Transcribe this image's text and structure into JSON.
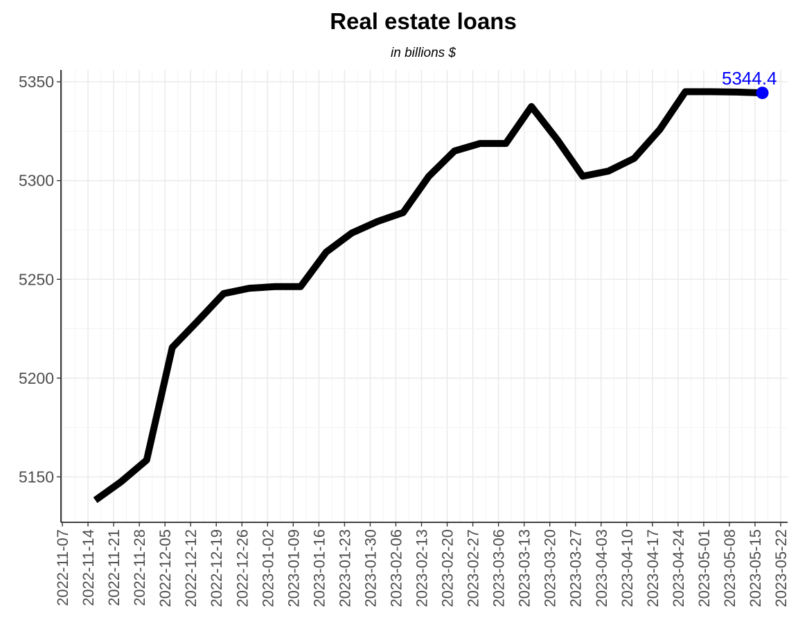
{
  "chart_data": {
    "type": "line",
    "title": "Real estate loans",
    "subtitle": "in billions $",
    "xlabel": "",
    "ylabel": "",
    "ylim": [
      5127,
      5356
    ],
    "xlim": [
      "2022-11-07",
      "2023-05-22"
    ],
    "y_ticks": [
      5150,
      5200,
      5250,
      5300,
      5350
    ],
    "x_ticks": [
      "2022-11-07",
      "2022-11-14",
      "2022-11-21",
      "2022-11-28",
      "2022-12-05",
      "2022-12-12",
      "2022-12-19",
      "2022-12-26",
      "2023-01-02",
      "2023-01-09",
      "2023-01-16",
      "2023-01-23",
      "2023-01-30",
      "2023-02-06",
      "2023-02-13",
      "2023-02-20",
      "2023-02-27",
      "2023-03-06",
      "2023-03-13",
      "2023-03-20",
      "2023-03-27",
      "2023-04-03",
      "2023-04-10",
      "2023-04-17",
      "2023-04-24",
      "2023-05-01",
      "2023-05-08",
      "2023-05-15",
      "2023-05-22"
    ],
    "grid": true,
    "series": [
      {
        "color": "#000000",
        "x": [
          "2022-11-16",
          "2022-11-23",
          "2022-11-30",
          "2022-12-07",
          "2022-12-14",
          "2022-12-21",
          "2022-12-28",
          "2023-01-04",
          "2023-01-11",
          "2023-01-18",
          "2023-01-25",
          "2023-02-01",
          "2023-02-08",
          "2023-02-15",
          "2023-02-22",
          "2023-03-01",
          "2023-03-08",
          "2023-03-15",
          "2023-03-22",
          "2023-03-29",
          "2023-04-05",
          "2023-04-12",
          "2023-04-19",
          "2023-04-26",
          "2023-05-03",
          "2023-05-10",
          "2023-05-17"
        ],
        "values": [
          5138.2,
          5147.5,
          5158.5,
          5215.5,
          5229.0,
          5242.8,
          5245.5,
          5246.3,
          5246.3,
          5263.8,
          5273.5,
          5279.3,
          5283.8,
          5302.2,
          5315.0,
          5318.8,
          5318.8,
          5337.5,
          5320.8,
          5302.2,
          5304.8,
          5311.2,
          5325.8,
          5345.0,
          5345.0,
          5344.8,
          5344.4
        ]
      }
    ],
    "last_point": {
      "x": "2023-05-17",
      "value": 5344.4,
      "label": "5344.4",
      "color": "#0000ff"
    }
  }
}
